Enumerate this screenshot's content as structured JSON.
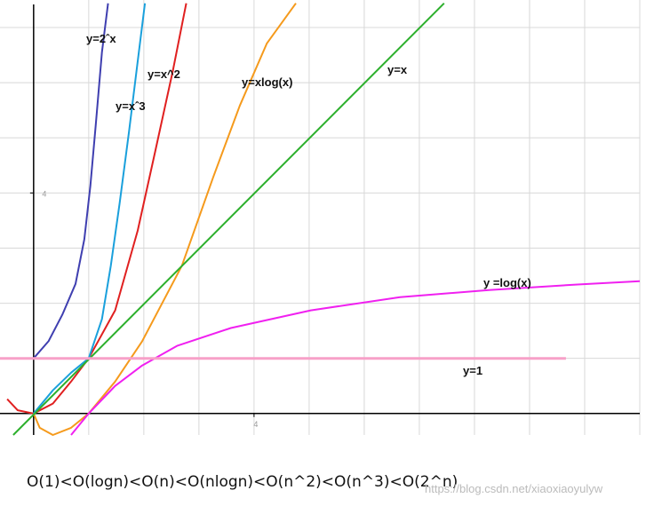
{
  "chart_data": {
    "type": "line",
    "xlim": [
      -0.61,
      11
    ],
    "ylim": [
      -0.39,
      7.5
    ],
    "xticks": [
      4
    ],
    "yticks": [
      4
    ],
    "xgrid": [
      1,
      2,
      3,
      4,
      5,
      6,
      7,
      8,
      9,
      10,
      11
    ],
    "ygrid": [
      1,
      2,
      3,
      4,
      5,
      6,
      7
    ],
    "series": [
      {
        "name": "y=2ˆx",
        "color": "#3f3fb0",
        "x": [
          0,
          0.27,
          0.52,
          0.76,
          0.92,
          1.03,
          1.13,
          1.24,
          1.35
        ],
        "values": [
          1,
          1.31,
          1.79,
          2.35,
          3.16,
          4.13,
          5.26,
          6.55,
          7.44
        ]
      },
      {
        "name": "y=x^2",
        "color": "#e02020",
        "x": [
          -0.48,
          -0.29,
          0,
          0.35,
          0.68,
          1,
          1.48,
          1.89,
          2.21,
          2.53,
          2.77
        ],
        "values": [
          0.26,
          0.06,
          0,
          0.18,
          0.58,
          1,
          1.87,
          3.32,
          4.77,
          6.23,
          7.44
        ]
      },
      {
        "name": "y=xˆ3",
        "color": "#1aa0dc",
        "x": [
          0,
          0.35,
          0.68,
          1,
          1.24,
          1.4,
          1.56,
          1.73,
          1.89,
          2.02
        ],
        "values": [
          0,
          0.42,
          0.74,
          1,
          1.71,
          2.68,
          3.81,
          5.1,
          6.39,
          7.44
        ]
      },
      {
        "name": "y=xlog(x)",
        "color": "#f59a1c",
        "x": [
          0,
          0.11,
          0.35,
          0.68,
          1,
          1.48,
          1.97,
          2.69,
          3.26,
          3.74,
          4.23,
          4.76
        ],
        "values": [
          0,
          -0.26,
          -0.39,
          -0.26,
          0,
          0.58,
          1.31,
          2.68,
          4.29,
          5.58,
          6.71,
          7.44
        ]
      },
      {
        "name": "y=x",
        "color": "#2db02d",
        "x": [
          -0.37,
          7.45
        ],
        "values": [
          -0.39,
          7.44
        ]
      },
      {
        "name": "y =log(x)",
        "color": "#f020f0",
        "x": [
          0.68,
          1,
          1.48,
          1.97,
          2.61,
          3.58,
          5.03,
          6.65,
          8.26,
          9.87,
          11
        ],
        "values": [
          -0.39,
          0,
          0.5,
          0.87,
          1.23,
          1.55,
          1.87,
          2.11,
          2.24,
          2.34,
          2.4
        ]
      },
      {
        "name": "y=1",
        "color": "#f7a0c8",
        "x": [
          -0.61,
          9.66
        ],
        "values": [
          1,
          1
        ]
      }
    ],
    "footnote": "O(1)<O(logn)<O(n)<O(nlogn)<O(n^2)<O(n^3)<O(2^n)",
    "watermark": "https://blog.csdn.net/xiaoxiaoyulyw"
  }
}
